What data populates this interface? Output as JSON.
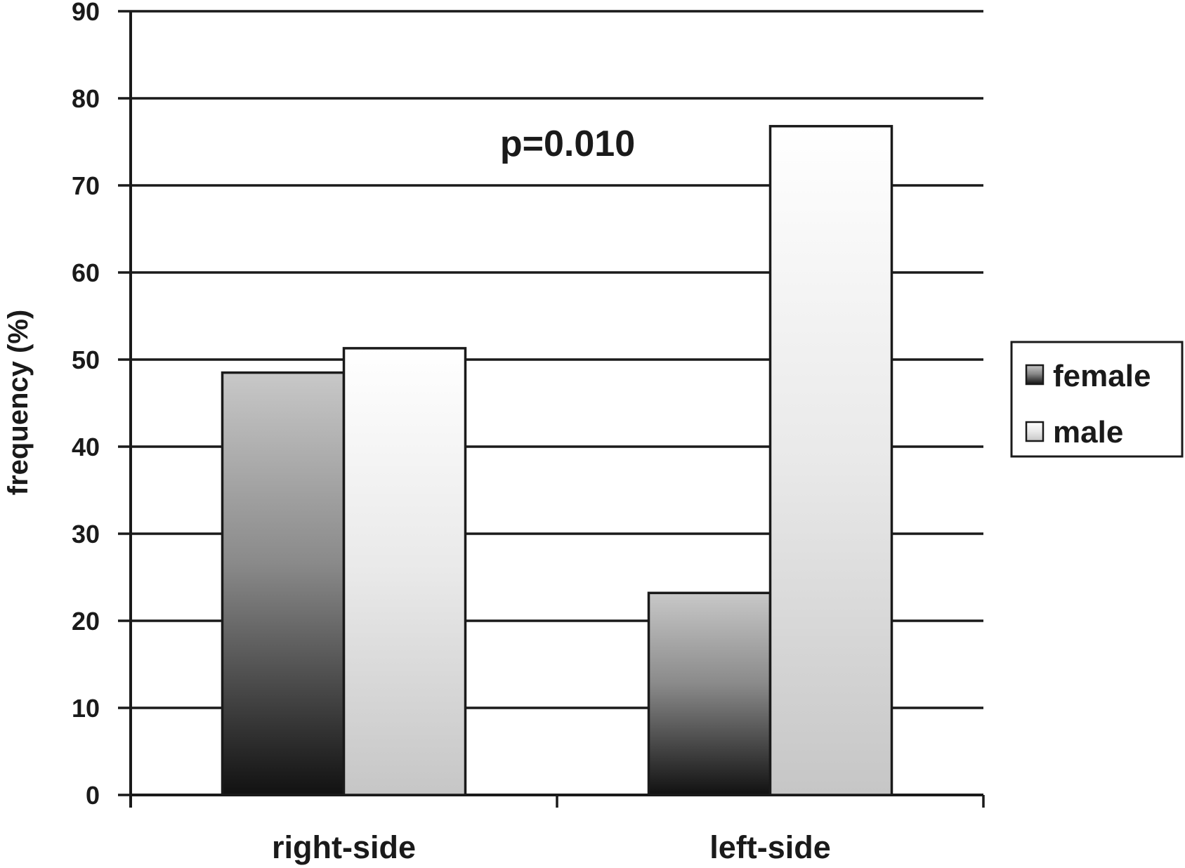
{
  "chart_data": {
    "type": "bar",
    "ylabel": "frequency (%)",
    "xlabel": "",
    "ylim": [
      0,
      90
    ],
    "yticks": [
      "0",
      "10",
      "20",
      "30",
      "40",
      "50",
      "60",
      "70",
      "80",
      "90"
    ],
    "grid": true,
    "legend_position": "right",
    "categories": [
      "right-side",
      "left-side"
    ],
    "series": [
      {
        "name": "female",
        "values": [
          48.5,
          23.2
        ],
        "color": "#3a3a3a"
      },
      {
        "name": "male",
        "values": [
          51.3,
          76.8
        ],
        "color": "#f2f2f2"
      }
    ],
    "annotation": "p=0.010"
  }
}
